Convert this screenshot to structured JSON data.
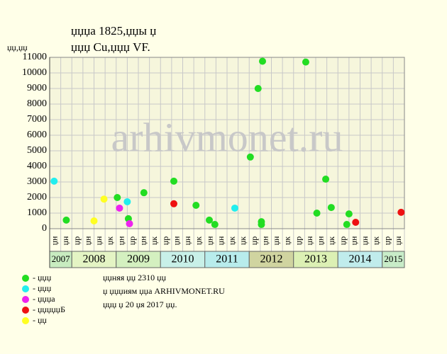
{
  "chart_data": {
    "type": "scatter",
    "title": "џџџа 1825,џџы џ",
    "subtitle": "џџџ Cu,џџџ VF.",
    "y_label": "џџ,џџ",
    "watermark": "arhivmonet.ru",
    "ylim": [
      0,
      11000
    ],
    "yticks": [
      0,
      1000,
      2000,
      3000,
      4000,
      5000,
      6000,
      7000,
      8000,
      9000,
      10000,
      11000
    ],
    "xlim": [
      0,
      32
    ],
    "grid": true,
    "column_labels": [
      "џн",
      "џн",
      "џр",
      "џн",
      "џн",
      "џк",
      "џн",
      "џр",
      "џн",
      "џк",
      "џр",
      "џн",
      "џн",
      "џк",
      "џн",
      "џн",
      "џк",
      "џк",
      "џр",
      "џн",
      "џн",
      "џк",
      "џр",
      "џн",
      "џн",
      "џк",
      "џр",
      "џн",
      "џн",
      "џк",
      "џр",
      "џн"
    ],
    "years": [
      {
        "label": "2007",
        "columns": 2,
        "color": "#c8ecc0"
      },
      {
        "label": "2008",
        "columns": 4,
        "color": "#e4f4c4"
      },
      {
        "label": "2009",
        "columns": 4,
        "color": "#d4f0c0"
      },
      {
        "label": "2010",
        "columns": 4,
        "color": "#c8f0e8"
      },
      {
        "label": "2011",
        "columns": 4,
        "color": "#b8ecec"
      },
      {
        "label": "2012",
        "columns": 4,
        "color": "#d0d4a0"
      },
      {
        "label": "2013",
        "columns": 4,
        "color": "#dcf0b4"
      },
      {
        "label": "2014",
        "columns": 4,
        "color": "#c0ecec"
      },
      {
        "label": "2015",
        "columns": 2,
        "color": "#c8ecc8"
      }
    ],
    "series": [
      {
        "name": "- џџџ",
        "color": "#22dd22",
        "x": [
          1.5,
          6.1,
          7.1,
          8.5,
          11.2,
          13.2,
          14.4,
          14.9,
          18.1,
          18.8,
          19.2,
          19.1,
          19.1,
          23.1,
          24.1,
          24.9,
          25.4,
          26.8,
          27.0
        ],
        "values": [
          550,
          2000,
          640,
          2310,
          3050,
          1500,
          550,
          270,
          4600,
          9000,
          10750,
          450,
          270,
          10700,
          1000,
          3180,
          1360,
          270,
          950
        ]
      },
      {
        "name": "- џџџ",
        "color": "#22eeee",
        "x": [
          0.4,
          7.0,
          16.7
        ],
        "values": [
          3050,
          1730,
          1320
        ]
      },
      {
        "name": "- џџџа",
        "color": "#ee22ee",
        "x": [
          6.3,
          7.2
        ],
        "values": [
          1320,
          320
        ]
      },
      {
        "name": "- џџџџџБ",
        "color": "#ee1111",
        "x": [
          11.2,
          27.6,
          31.7
        ],
        "values": [
          1600,
          410,
          1050
        ]
      },
      {
        "name": "- џџ",
        "color": "#ffff22",
        "x": [
          4.0,
          4.9
        ],
        "values": [
          500,
          1900
        ]
      }
    ],
    "notes": [
      "џџняя џџ 2310 џџ",
      "џ џџџиям џџа ARHIVMONET.RU",
      "џџџ џ 20 џя 2017 џџ."
    ]
  }
}
